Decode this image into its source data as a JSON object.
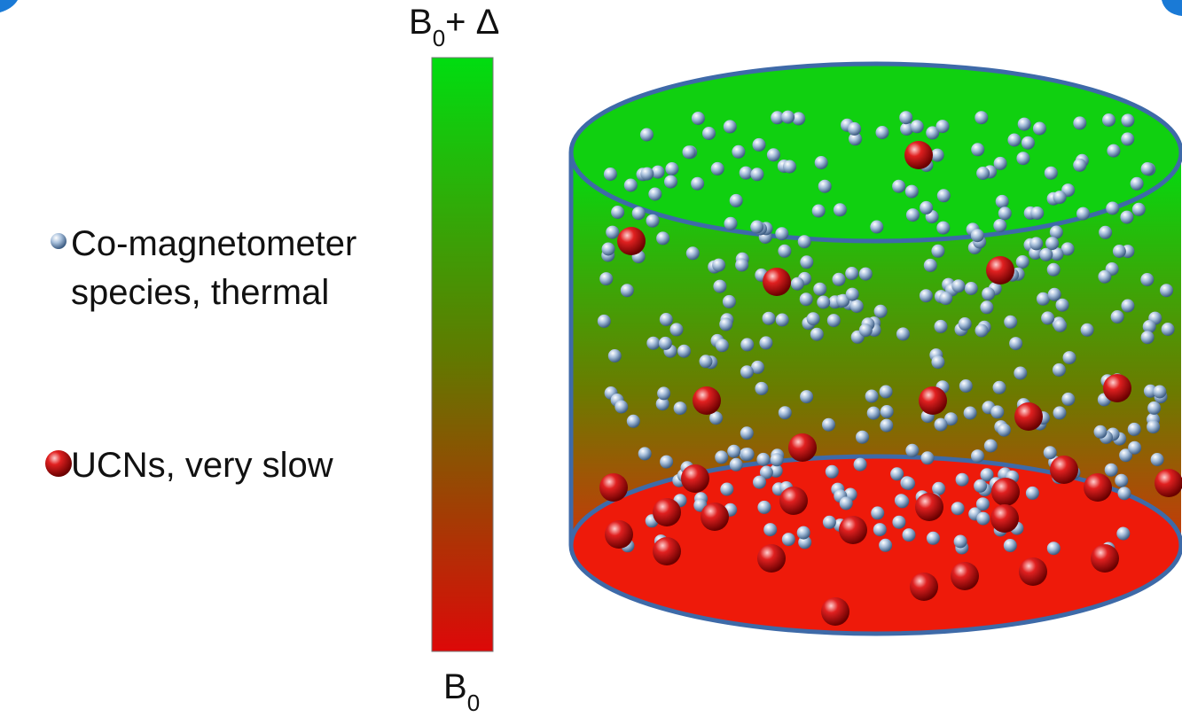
{
  "colorbar": {
    "top_label": {
      "base": "B",
      "subscript": "0",
      "suffix": "+ Δ"
    },
    "bottom_label": {
      "base": "B",
      "subscript": "0"
    }
  },
  "legend": {
    "items": [
      {
        "lines": [
          "Co-magnetometer",
          "species, thermal"
        ]
      },
      {
        "lines": [
          "UCNs, very slow"
        ]
      }
    ]
  }
}
